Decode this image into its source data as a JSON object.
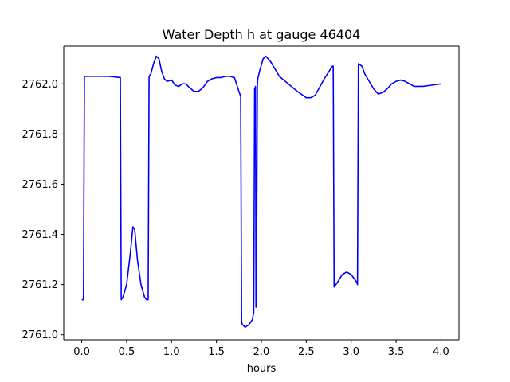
{
  "chart_data": {
    "type": "line",
    "title": "Water Depth h at gauge 46404",
    "xlabel": "hours",
    "ylabel": "",
    "xlim": [
      -0.2,
      4.2
    ],
    "ylim": [
      2760.98,
      2762.15
    ],
    "grid": false,
    "line_color": "#0000ff",
    "x_ticks": [
      {
        "value": 0.0,
        "label": "0.0"
      },
      {
        "value": 0.5,
        "label": "0.5"
      },
      {
        "value": 1.0,
        "label": "1.0"
      },
      {
        "value": 1.5,
        "label": "1.5"
      },
      {
        "value": 2.0,
        "label": "2.0"
      },
      {
        "value": 2.5,
        "label": "2.5"
      },
      {
        "value": 3.0,
        "label": "3.0"
      },
      {
        "value": 3.5,
        "label": "3.5"
      },
      {
        "value": 4.0,
        "label": "4.0"
      }
    ],
    "y_ticks": [
      {
        "value": 2761.0,
        "label": "2761.0"
      },
      {
        "value": 2761.2,
        "label": "2761.2"
      },
      {
        "value": 2761.4,
        "label": "2761.4"
      },
      {
        "value": 2761.6,
        "label": "2761.6"
      },
      {
        "value": 2761.8,
        "label": "2761.8"
      },
      {
        "value": 2762.0,
        "label": "2762.0"
      }
    ],
    "series": [
      {
        "x": [
          0.0,
          0.02,
          0.03,
          0.2,
          0.3,
          0.43,
          0.44,
          0.46,
          0.5,
          0.54,
          0.57,
          0.59,
          0.62,
          0.66,
          0.7,
          0.72,
          0.74,
          0.75,
          0.77,
          0.8,
          0.83,
          0.86,
          0.89,
          0.92,
          0.95,
          1.0,
          1.04,
          1.08,
          1.12,
          1.16,
          1.2,
          1.25,
          1.3,
          1.35,
          1.4,
          1.45,
          1.5,
          1.55,
          1.6,
          1.65,
          1.7,
          1.75,
          1.77,
          1.78,
          1.79,
          1.82,
          1.86,
          1.9,
          1.915,
          1.925,
          1.935,
          1.94,
          1.945,
          1.955,
          1.96,
          1.98,
          2.02,
          2.05,
          2.1,
          2.15,
          2.2,
          2.3,
          2.4,
          2.5,
          2.55,
          2.6,
          2.7,
          2.79,
          2.8,
          2.81,
          2.85,
          2.9,
          2.95,
          3.0,
          3.06,
          3.07,
          3.08,
          3.12,
          3.15,
          3.2,
          3.25,
          3.3,
          3.35,
          3.4,
          3.45,
          3.5,
          3.55,
          3.6,
          3.65,
          3.7,
          3.8,
          3.9,
          4.0
        ],
        "y": [
          2761.14,
          2761.14,
          2762.03,
          2762.03,
          2762.03,
          2762.025,
          2761.14,
          2761.15,
          2761.2,
          2761.32,
          2761.43,
          2761.42,
          2761.3,
          2761.2,
          2761.15,
          2761.14,
          2761.14,
          2762.03,
          2762.04,
          2762.08,
          2762.11,
          2762.1,
          2762.05,
          2762.02,
          2762.01,
          2762.015,
          2761.995,
          2761.99,
          2762.0,
          2762.0,
          2761.985,
          2761.97,
          2761.97,
          2761.985,
          2762.01,
          2762.02,
          2762.025,
          2762.025,
          2762.03,
          2762.03,
          2762.025,
          2761.97,
          2761.95,
          2761.05,
          2761.04,
          2761.03,
          2761.04,
          2761.06,
          2761.09,
          2761.98,
          2761.99,
          2761.11,
          2761.12,
          2761.99,
          2762.02,
          2762.05,
          2762.1,
          2762.11,
          2762.09,
          2762.06,
          2762.03,
          2762.0,
          2761.97,
          2761.945,
          2761.945,
          2761.955,
          2762.02,
          2762.07,
          2762.07,
          2761.19,
          2761.21,
          2761.24,
          2761.25,
          2761.24,
          2761.21,
          2761.2,
          2762.08,
          2762.07,
          2762.04,
          2762.01,
          2761.98,
          2761.96,
          2761.965,
          2761.98,
          2762.0,
          2762.01,
          2762.015,
          2762.01,
          2762.0,
          2761.99,
          2761.99,
          2761.995,
          2762.0
        ]
      }
    ]
  }
}
